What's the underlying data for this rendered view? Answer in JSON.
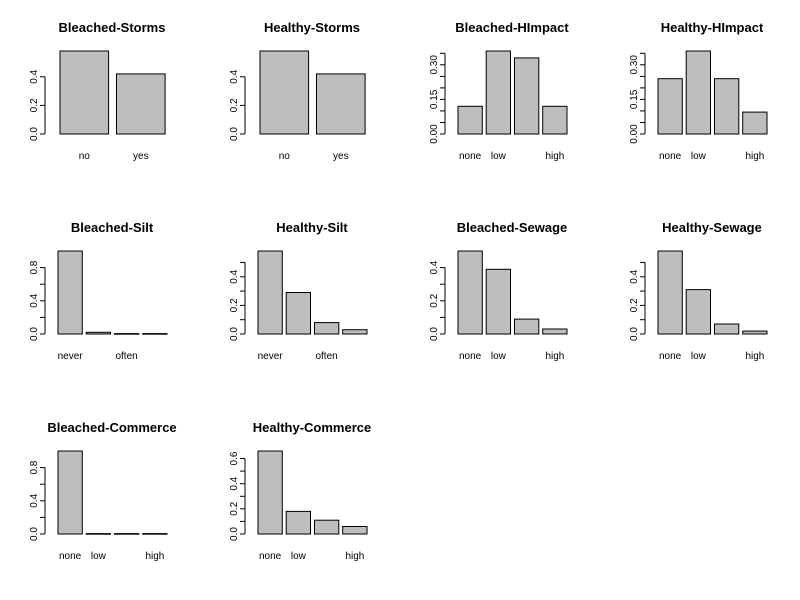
{
  "chart_data": [
    {
      "type": "bar",
      "title": "Bleached-Storms",
      "categories": [
        "no",
        "yes"
      ],
      "tick_labels": [
        "no",
        "yes"
      ],
      "values": [
        0.58,
        0.42
      ],
      "ylim": [
        0,
        0.58
      ],
      "yticks": [
        0.0,
        0.2,
        0.4
      ],
      "ytick_labels": [
        "0.0",
        "0.2",
        "0.4"
      ]
    },
    {
      "type": "bar",
      "title": "Healthy-Storms",
      "categories": [
        "no",
        "yes"
      ],
      "tick_labels": [
        "no",
        "yes"
      ],
      "values": [
        0.58,
        0.42
      ],
      "ylim": [
        0,
        0.58
      ],
      "yticks": [
        0.0,
        0.2,
        0.4
      ],
      "ytick_labels": [
        "0.0",
        "0.2",
        "0.4"
      ]
    },
    {
      "type": "bar",
      "title": "Bleached-HImpact",
      "categories": [
        "none",
        "low",
        "",
        "high"
      ],
      "tick_labels": [
        "none",
        "low",
        "",
        "high"
      ],
      "values": [
        0.12,
        0.36,
        0.33,
        0.12
      ],
      "ylim": [
        0,
        0.36
      ],
      "yticks": [
        0.0,
        0.05,
        0.1,
        0.15,
        0.2,
        0.25,
        0.3,
        0.35
      ],
      "ytick_labels": [
        "0.00",
        "",
        "",
        "0.15",
        "",
        "",
        "0.30",
        ""
      ]
    },
    {
      "type": "bar",
      "title": "Healthy-HImpact",
      "categories": [
        "none",
        "low",
        "",
        "high"
      ],
      "tick_labels": [
        "none",
        "low",
        "",
        "high"
      ],
      "values": [
        0.24,
        0.36,
        0.24,
        0.095
      ],
      "ylim": [
        0,
        0.36
      ],
      "yticks": [
        0.0,
        0.05,
        0.1,
        0.15,
        0.2,
        0.25,
        0.3,
        0.35
      ],
      "ytick_labels": [
        "0.00",
        "",
        "",
        "0.15",
        "",
        "",
        "0.30",
        ""
      ]
    },
    {
      "type": "bar",
      "title": "Bleached-Silt",
      "categories": [
        "never",
        "",
        "often",
        ""
      ],
      "tick_labels": [
        "never",
        "",
        "often",
        ""
      ],
      "values": [
        1.0,
        0.02,
        0.005,
        0.005
      ],
      "ylim": [
        0,
        1.0
      ],
      "yticks": [
        0.0,
        0.2,
        0.4,
        0.6,
        0.8
      ],
      "ytick_labels": [
        "0.0",
        "",
        "0.4",
        "",
        "0.8"
      ]
    },
    {
      "type": "bar",
      "title": "Healthy-Silt",
      "categories": [
        "never",
        "",
        "often",
        ""
      ],
      "tick_labels": [
        "never",
        "",
        "often",
        ""
      ],
      "values": [
        0.58,
        0.29,
        0.08,
        0.03
      ],
      "ylim": [
        0,
        0.58
      ],
      "yticks": [
        0.0,
        0.1,
        0.2,
        0.3,
        0.4,
        0.5
      ],
      "ytick_labels": [
        "0.0",
        "",
        "0.2",
        "",
        "0.4",
        ""
      ]
    },
    {
      "type": "bar",
      "title": "Bleached-Sewage",
      "categories": [
        "none",
        "low",
        "",
        "high"
      ],
      "tick_labels": [
        "none",
        "low",
        "",
        "high"
      ],
      "values": [
        0.5,
        0.39,
        0.09,
        0.03
      ],
      "ylim": [
        0,
        0.5
      ],
      "yticks": [
        0.0,
        0.1,
        0.2,
        0.3,
        0.4
      ],
      "ytick_labels": [
        "0.0",
        "",
        "0.2",
        "",
        "0.4"
      ]
    },
    {
      "type": "bar",
      "title": "Healthy-Sewage",
      "categories": [
        "none",
        "low",
        "",
        "high"
      ],
      "tick_labels": [
        "none",
        "low",
        "",
        "high"
      ],
      "values": [
        0.58,
        0.31,
        0.07,
        0.02
      ],
      "ylim": [
        0,
        0.58
      ],
      "yticks": [
        0.0,
        0.1,
        0.2,
        0.3,
        0.4,
        0.5
      ],
      "ytick_labels": [
        "0.0",
        "",
        "0.2",
        "",
        "0.4",
        ""
      ]
    },
    {
      "type": "bar",
      "title": "Bleached-Commerce",
      "categories": [
        "none",
        "low",
        "",
        "high"
      ],
      "tick_labels": [
        "none",
        "low",
        "",
        "high"
      ],
      "values": [
        1.0,
        0.005,
        0.005,
        0.005
      ],
      "ylim": [
        0,
        1.0
      ],
      "yticks": [
        0.0,
        0.2,
        0.4,
        0.6,
        0.8
      ],
      "ytick_labels": [
        "0.0",
        "",
        "0.4",
        "",
        "0.8"
      ]
    },
    {
      "type": "bar",
      "title": "Healthy-Commerce",
      "categories": [
        "none",
        "low",
        "",
        "high"
      ],
      "tick_labels": [
        "none",
        "low",
        "",
        "high"
      ],
      "values": [
        0.66,
        0.18,
        0.11,
        0.06
      ],
      "ylim": [
        0,
        0.66
      ],
      "yticks": [
        0.0,
        0.1,
        0.2,
        0.3,
        0.4,
        0.5,
        0.6
      ],
      "ytick_labels": [
        "0.0",
        "",
        "0.2",
        "",
        "0.4",
        "",
        "0.6"
      ]
    }
  ],
  "colors": {
    "bar_fill": "#bebebe",
    "bar_stroke": "#000000",
    "background": "#ffffff"
  }
}
